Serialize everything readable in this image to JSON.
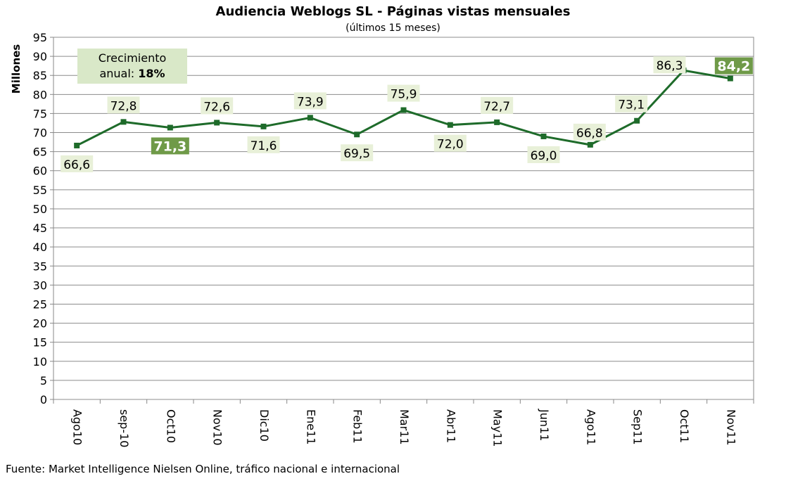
{
  "chart_data": {
    "type": "line",
    "title": "Audiencia Weblogs SL - Páginas vistas mensuales",
    "subtitle": "(últimos 15 meses)",
    "ylabel": "Millones",
    "xlabel": "",
    "ylim": [
      0,
      95
    ],
    "ytick_step": 5,
    "grid": true,
    "categories": [
      "Ago10",
      "sep-10",
      "Oct10",
      "Nov10",
      "Dic10",
      "Ene11",
      "Feb11",
      "Mar11",
      "Abr11",
      "May11",
      "Jun11",
      "Ago11",
      "Sep11",
      "Oct11",
      "Nov11"
    ],
    "series": [
      {
        "values": [
          66.6,
          72.8,
          71.3,
          72.6,
          71.6,
          73.9,
          69.5,
          75.9,
          72.0,
          72.7,
          69.0,
          66.8,
          73.1,
          86.3,
          84.2
        ],
        "data_labels": [
          "66,6",
          "72,8",
          "71,3",
          "72,6",
          "71,6",
          "73,9",
          "69,5",
          "75,9",
          "72,0",
          "72,7",
          "69,0",
          "66,8",
          "73,1",
          "86,3",
          "84,2"
        ],
        "highlighted": [
          2,
          14
        ],
        "color": "#1e6b2a"
      }
    ],
    "annotation": {
      "text": "Crecimiento",
      "text2": "anual: ",
      "bold": "18%"
    },
    "label_bg": "#e8f0d8",
    "highlight_bg": "#6f9a48"
  },
  "footer": {
    "source": "Fuente: Market Intelligence Nielsen Online, tráfico nacional e internacional"
  }
}
